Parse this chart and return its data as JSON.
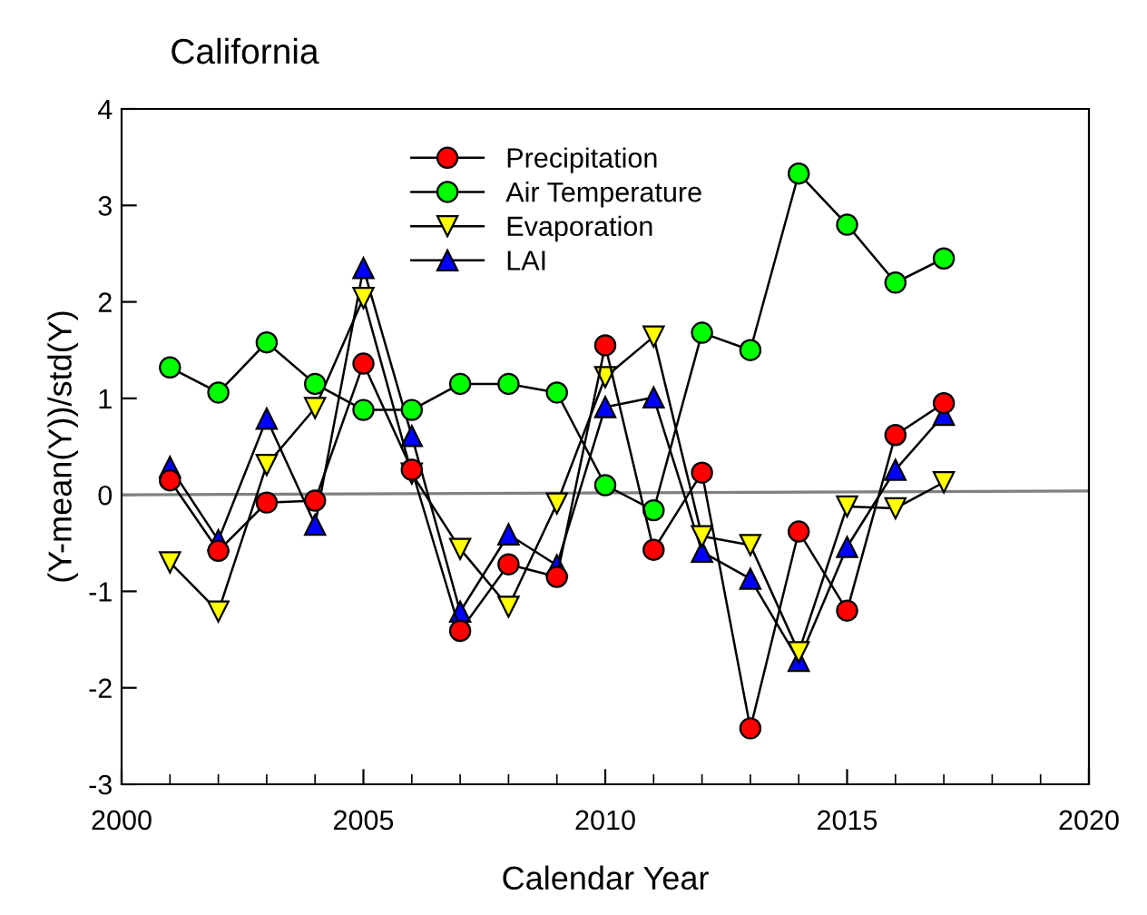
{
  "chart_data": {
    "type": "line",
    "title": "California",
    "xlabel": "Calendar Year",
    "ylabel": "(Y-mean(Y))/std(Y)",
    "x": [
      2001,
      2002,
      2003,
      2004,
      2005,
      2006,
      2007,
      2008,
      2009,
      2010,
      2011,
      2012,
      2013,
      2014,
      2015,
      2016,
      2017
    ],
    "series": [
      {
        "name": "Precipitation",
        "color": "#ff0000",
        "marker": "circle",
        "values": [
          0.15,
          -0.58,
          -0.08,
          -0.06,
          1.36,
          0.26,
          -1.41,
          -0.72,
          -0.85,
          1.55,
          -0.57,
          0.23,
          -2.42,
          -0.38,
          -1.2,
          0.62,
          0.95
        ]
      },
      {
        "name": "Air Temperature",
        "color": "#00ff00",
        "marker": "circle",
        "values": [
          1.32,
          1.06,
          1.58,
          1.15,
          0.88,
          0.88,
          1.15,
          1.15,
          1.06,
          0.1,
          -0.16,
          1.68,
          1.5,
          3.33,
          2.8,
          2.2,
          2.45
        ]
      },
      {
        "name": "Evaporation",
        "color": "#ffff00",
        "marker": "triangle_down",
        "values": [
          -0.7,
          -1.21,
          0.31,
          0.9,
          2.04,
          0.22,
          -0.56,
          -1.16,
          -0.09,
          1.22,
          1.64,
          -0.43,
          -0.52,
          -1.63,
          -0.12,
          -0.14,
          0.13
        ]
      },
      {
        "name": "LAI",
        "color": "#0000ff",
        "marker": "triangle",
        "values": [
          0.29,
          -0.47,
          0.79,
          -0.31,
          2.35,
          0.61,
          -1.21,
          -0.41,
          -0.73,
          0.91,
          1.01,
          -0.59,
          -0.87,
          -1.72,
          -0.54,
          0.26,
          0.83
        ]
      },
      {
        "type": "line",
        "color": "#808080",
        "marker": "none",
        "x": [
          2000,
          2020
        ],
        "values": [
          0,
          0.04
        ]
      }
    ],
    "xlim": [
      2000,
      2020
    ],
    "ylim": [
      -3,
      4
    ],
    "xticks": [
      2000,
      2005,
      2010,
      2015,
      2020
    ],
    "yticks": [
      -3,
      -2,
      -1,
      0,
      1,
      2,
      3,
      4
    ],
    "grid": false,
    "legend": "top",
    "line_style": "solid"
  }
}
